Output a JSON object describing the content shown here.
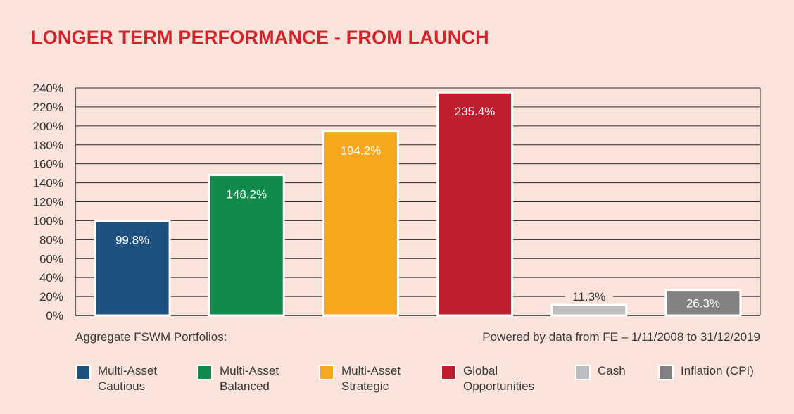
{
  "title": "LONGER TERM PERFORMANCE - FROM LAUNCH",
  "notes": {
    "left": "Aggregate FSWM Portfolios:",
    "right": "Powered by data from FE – 1/11/2008 to 31/12/2019"
  },
  "chart_data": {
    "type": "bar",
    "title": "LONGER TERM PERFORMANCE - FROM LAUNCH",
    "categories": [
      "Multi-Asset Cautious",
      "Multi-Asset Balanced",
      "Multi-Asset Strategic",
      "Global Opportunities",
      "Cash",
      "Inflation (CPI)"
    ],
    "values": [
      99.8,
      148.2,
      194.2,
      235.4,
      11.3,
      26.3
    ],
    "value_labels": [
      "99.8%",
      "148.2%",
      "194.2%",
      "235.4%",
      "11.3%",
      "26.3%"
    ],
    "colors": [
      "#1f5180",
      "#0f8a4a",
      "#f7a71e",
      "#be1e2d",
      "#bcbdbf",
      "#818181"
    ],
    "ylim": [
      0,
      240
    ],
    "yticks": [
      "0%",
      "20%",
      "40%",
      "60%",
      "80%",
      "100%",
      "120%",
      "140%",
      "160%",
      "180%",
      "200%",
      "220%",
      "240%"
    ],
    "grid": true,
    "legend_position": "bottom"
  },
  "legend": [
    {
      "line1": "Multi-Asset",
      "line2": "Cautious",
      "color": "#1f5180"
    },
    {
      "line1": "Multi-Asset",
      "line2": "Balanced",
      "color": "#0f8a4a"
    },
    {
      "line1": "Multi-Asset",
      "line2": "Strategic",
      "color": "#f7a71e"
    },
    {
      "line1": "Global",
      "line2": "Opportunities",
      "color": "#be1e2d"
    },
    {
      "line1": "Cash",
      "line2": "",
      "color": "#bcbdbf"
    },
    {
      "line1": "Inflation (CPI)",
      "line2": "",
      "color": "#818181"
    }
  ]
}
